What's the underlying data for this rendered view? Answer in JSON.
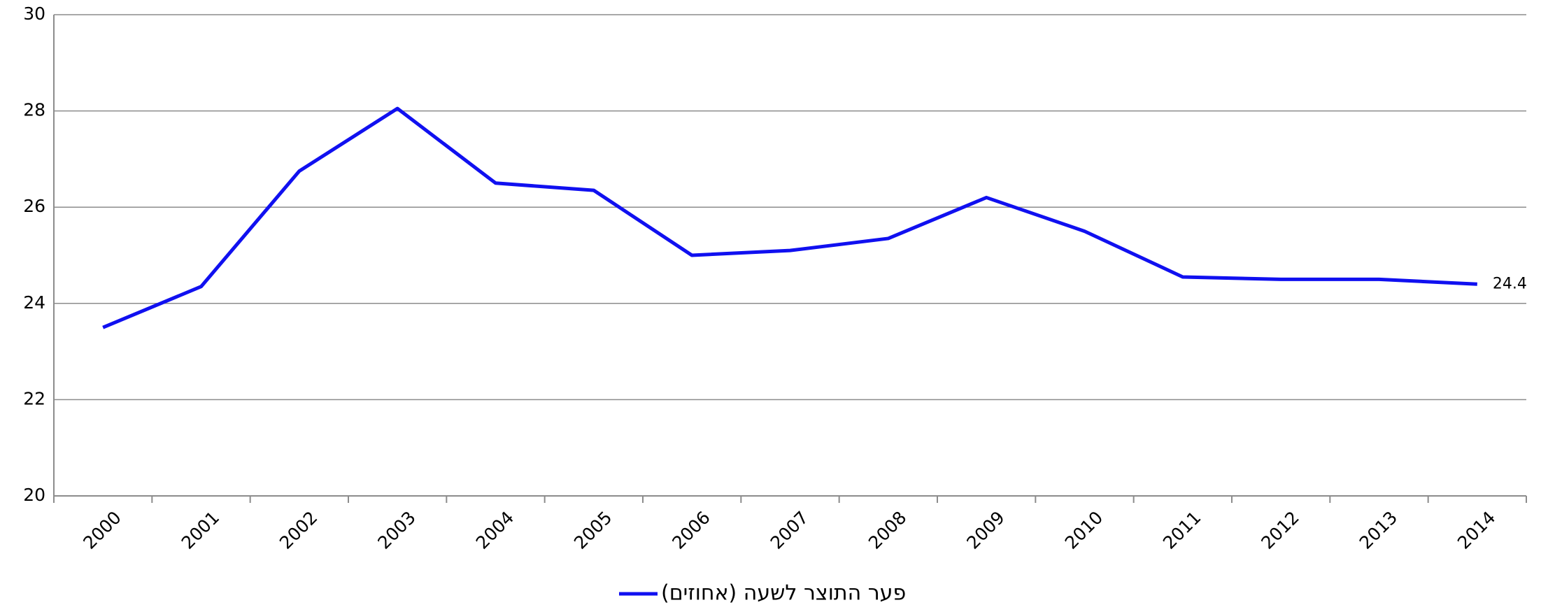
{
  "chart_data": {
    "type": "line",
    "categories": [
      "2000",
      "2001",
      "2002",
      "2003",
      "2004",
      "2005",
      "2006",
      "2007",
      "2008",
      "2009",
      "2010",
      "2011",
      "2012",
      "2013",
      "2014"
    ],
    "series": [
      {
        "name": "פער התוצר לשעה (אחוזים)",
        "color": "#1010f0",
        "values": [
          23.5,
          24.35,
          26.75,
          28.05,
          26.5,
          26.35,
          25.0,
          25.1,
          25.35,
          26.2,
          25.5,
          24.55,
          24.5,
          24.5,
          24.4
        ]
      }
    ],
    "label_last_point": true,
    "ylim": [
      20,
      30
    ],
    "yticks": [
      20,
      22,
      24,
      26,
      28,
      30
    ],
    "grid": true,
    "legend": "bottom"
  }
}
